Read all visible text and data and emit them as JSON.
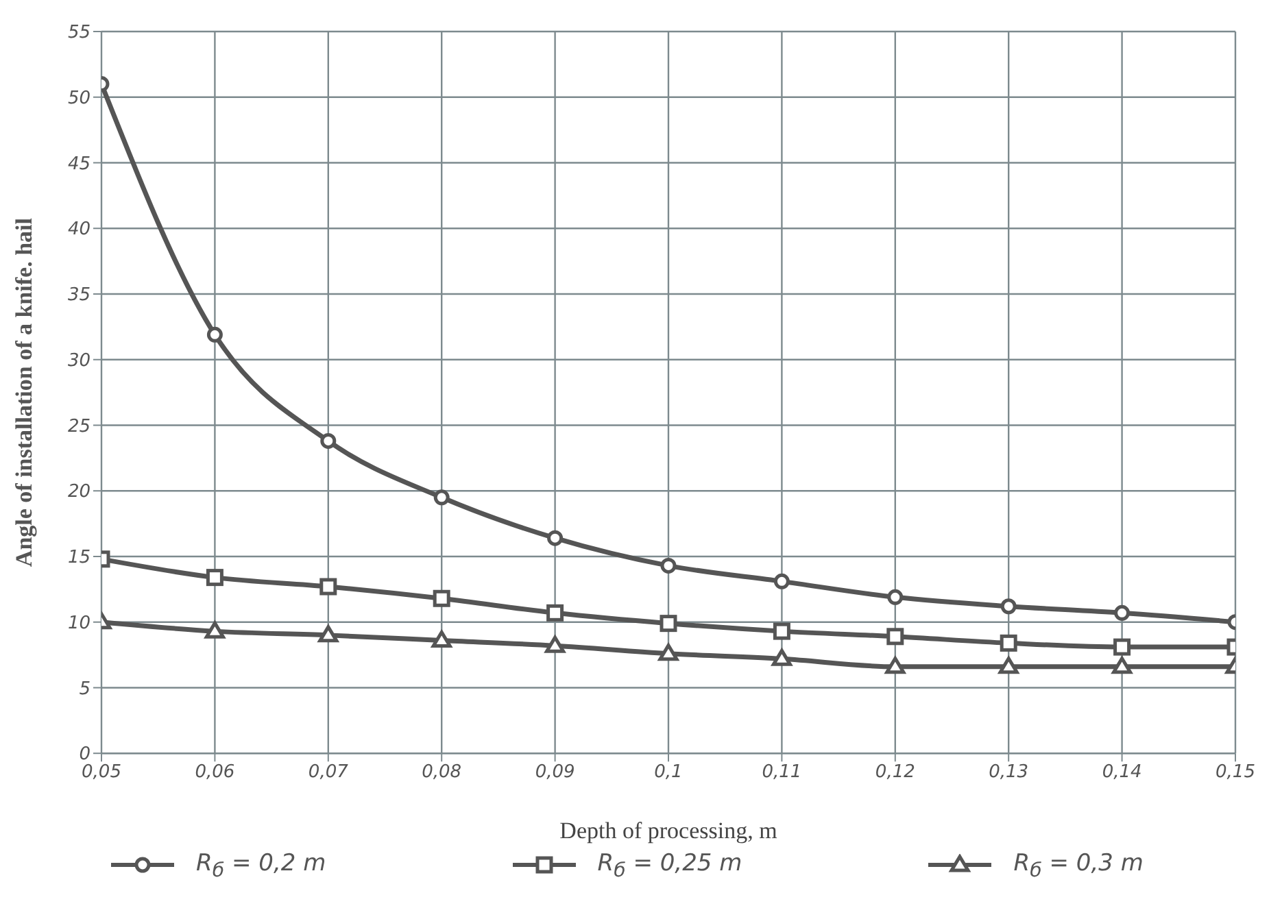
{
  "chart_data": {
    "type": "line",
    "xlabel": "Depth of processing, m",
    "ylabel": "Angle of installation of a knife. hail",
    "x": [
      0.05,
      0.06,
      0.07,
      0.08,
      0.09,
      0.1,
      0.11,
      0.12,
      0.13,
      0.14,
      0.15
    ],
    "series": [
      {
        "name": "R$_{б}$ = 0,2  m",
        "color": "#555555",
        "marker": "circle",
        "values": [
          51.0,
          31.9,
          23.8,
          19.5,
          16.4,
          14.3,
          13.1,
          11.9,
          11.2,
          10.7,
          10.0
        ]
      },
      {
        "name": "R$_{б}$ = 0,25  m",
        "color": "#555555",
        "marker": "square",
        "values": [
          14.8,
          13.4,
          12.7,
          11.8,
          10.7,
          9.9,
          9.3,
          8.9,
          8.4,
          8.1,
          8.1
        ]
      },
      {
        "name": "R$_{б}$ = 0,3  m",
        "color": "#555555",
        "marker": "triangle",
        "values": [
          10.0,
          9.3,
          9.0,
          8.6,
          8.2,
          7.6,
          7.2,
          6.6,
          6.6,
          6.6,
          6.6
        ]
      }
    ],
    "xlim": [
      0.05,
      0.15
    ],
    "xticks": [
      {
        "value": 0.05,
        "label": "0,05"
      },
      {
        "value": 0.06,
        "label": "0,06"
      },
      {
        "value": 0.07,
        "label": "0,07"
      },
      {
        "value": 0.08,
        "label": "0,08"
      },
      {
        "value": 0.09,
        "label": "0,09"
      },
      {
        "value": 0.1,
        "label": "0,1"
      },
      {
        "value": 0.11,
        "label": "0,11"
      },
      {
        "value": 0.12,
        "label": "0,12"
      },
      {
        "value": 0.13,
        "label": "0,13"
      },
      {
        "value": 0.14,
        "label": "0,14"
      },
      {
        "value": 0.15,
        "label": "0,15"
      }
    ],
    "ylim": [
      0,
      55
    ],
    "yticks": [
      0,
      5,
      10,
      15,
      20,
      25,
      30,
      35,
      40,
      45,
      50,
      55
    ],
    "grid": true,
    "legend": "bottom",
    "line_style": "solid"
  }
}
